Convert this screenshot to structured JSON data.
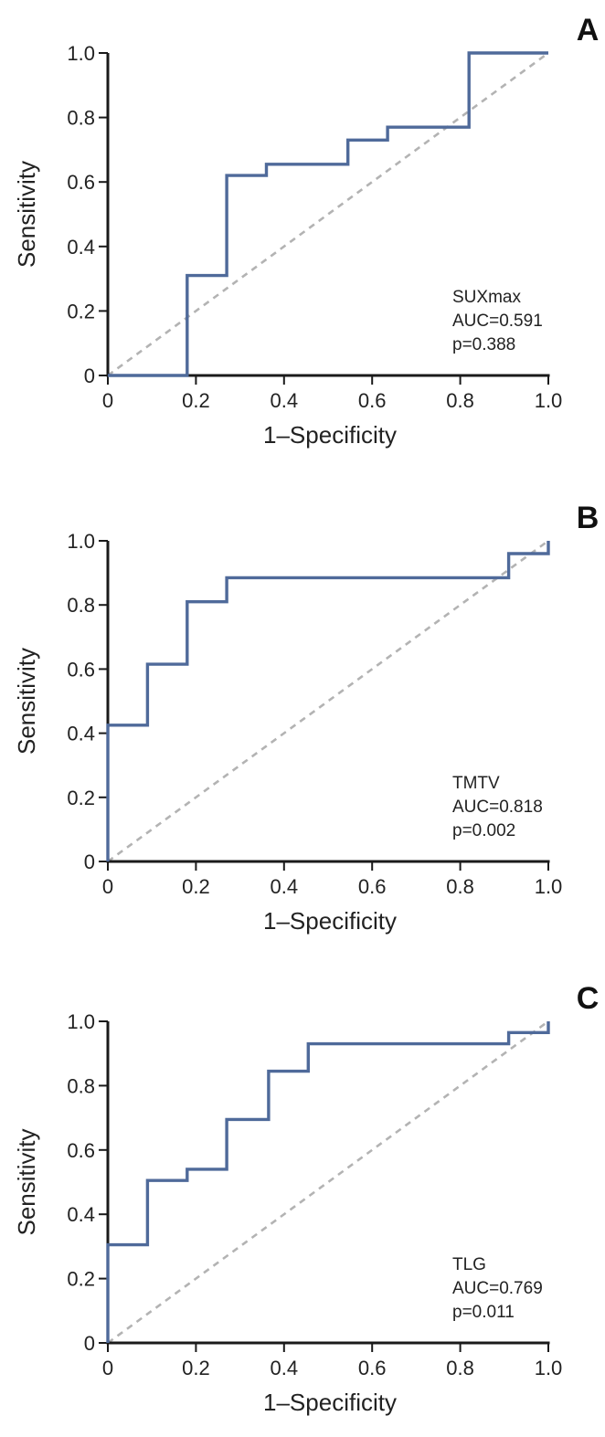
{
  "colors": {
    "roc": "#4f6a9a",
    "reference": "#b3b3b3",
    "axis": "#1a1a1a"
  },
  "chart_data": [
    {
      "type": "line",
      "panel": "A",
      "xlabel": "1–Specificity",
      "ylabel": "Sensitivity",
      "xlim": [
        0,
        1
      ],
      "ylim": [
        0,
        1
      ],
      "xticks": [
        "0",
        "0.2",
        "0.4",
        "0.6",
        "0.8",
        "1.0"
      ],
      "yticks": [
        "0",
        "0.2",
        "0.4",
        "0.6",
        "0.8",
        "1.0"
      ],
      "annotation": [
        "SUXmax",
        "AUC=0.591",
        "p=0.388"
      ],
      "reference_line": {
        "x": [
          0,
          1
        ],
        "y": [
          0,
          1
        ]
      },
      "series": [
        {
          "name": "SUXmax",
          "x": [
            0,
            0.18,
            0.18,
            0.27,
            0.27,
            0.36,
            0.36,
            0.545,
            0.545,
            0.635,
            0.635,
            0.82,
            0.82,
            1.0
          ],
          "y": [
            0,
            0,
            0.31,
            0.31,
            0.62,
            0.62,
            0.655,
            0.655,
            0.73,
            0.73,
            0.77,
            0.77,
            1.0,
            1.0
          ]
        }
      ]
    },
    {
      "type": "line",
      "panel": "B",
      "xlabel": "1–Specificity",
      "ylabel": "Sensitivity",
      "xlim": [
        0,
        1
      ],
      "ylim": [
        0,
        1
      ],
      "xticks": [
        "0",
        "0.2",
        "0.4",
        "0.6",
        "0.8",
        "1.0"
      ],
      "yticks": [
        "0",
        "0.2",
        "0.4",
        "0.6",
        "0.8",
        "1.0"
      ],
      "annotation": [
        "TMTV",
        "AUC=0.818",
        "p=0.002"
      ],
      "reference_line": {
        "x": [
          0,
          1
        ],
        "y": [
          0,
          1
        ]
      },
      "series": [
        {
          "name": "TMTV",
          "x": [
            0,
            0,
            0.09,
            0.09,
            0.18,
            0.18,
            0.27,
            0.27,
            0.91,
            0.91,
            1.0,
            1.0
          ],
          "y": [
            0,
            0.425,
            0.425,
            0.615,
            0.615,
            0.81,
            0.81,
            0.885,
            0.885,
            0.96,
            0.96,
            1.0
          ]
        }
      ]
    },
    {
      "type": "line",
      "panel": "C",
      "xlabel": "1–Specificity",
      "ylabel": "Sensitivity",
      "xlim": [
        0,
        1
      ],
      "ylim": [
        0,
        1
      ],
      "xticks": [
        "0",
        "0.2",
        "0.4",
        "0.6",
        "0.8",
        "1.0"
      ],
      "yticks": [
        "0",
        "0.2",
        "0.4",
        "0.6",
        "0.8",
        "1.0"
      ],
      "annotation": [
        "TLG",
        "AUC=0.769",
        "p=0.011"
      ],
      "reference_line": {
        "x": [
          0,
          1
        ],
        "y": [
          0,
          1
        ]
      },
      "series": [
        {
          "name": "TLG",
          "x": [
            0,
            0,
            0.09,
            0.09,
            0.18,
            0.18,
            0.27,
            0.27,
            0.365,
            0.365,
            0.455,
            0.455,
            0.91,
            0.91,
            1.0,
            1.0
          ],
          "y": [
            0,
            0.305,
            0.305,
            0.505,
            0.505,
            0.54,
            0.54,
            0.695,
            0.695,
            0.845,
            0.845,
            0.93,
            0.93,
            0.965,
            0.965,
            1.0
          ]
        }
      ]
    }
  ]
}
